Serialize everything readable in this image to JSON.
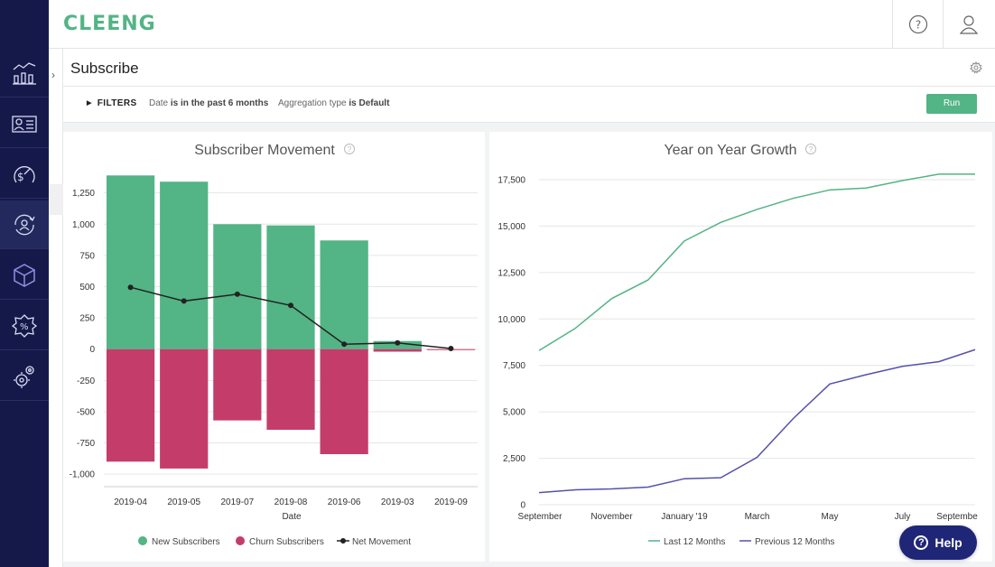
{
  "app": {
    "logo_text": "CLEENG"
  },
  "sidebar": {
    "items": [
      {
        "name": "analytics-icon"
      },
      {
        "name": "customer-card-icon"
      },
      {
        "name": "revenue-gauge-icon"
      },
      {
        "name": "subscriber-refresh-icon",
        "active": true
      },
      {
        "name": "cube-offers-icon"
      },
      {
        "name": "discount-badge-icon"
      },
      {
        "name": "settings-gears-icon"
      }
    ]
  },
  "topbar": {
    "help_icon": "question-circle-icon",
    "user_icon": "user-icon"
  },
  "page": {
    "title": "Subscribe"
  },
  "filters": {
    "toggle_label": "FILTERS",
    "date_label": "Date",
    "date_value": "is in the past 6 months",
    "aggregation_label": "Aggregation type",
    "aggregation_value": "is Default",
    "run_label": "Run"
  },
  "help": {
    "label": "Help"
  },
  "colors": {
    "green": "#53b485",
    "pink": "#c43d6a",
    "navy": "#15194a",
    "purple": "#5551ab"
  },
  "chart_data": [
    {
      "type": "bar",
      "title": "Subscriber Movement",
      "xlabel": "Date",
      "ylabel": "",
      "categories": [
        "2019-04",
        "2019-05",
        "2019-07",
        "2019-08",
        "2019-06",
        "2019-03",
        "2019-09"
      ],
      "series": [
        {
          "name": "New Subscribers",
          "type": "bar",
          "color": "#53b485",
          "values": [
            1390,
            1340,
            1000,
            990,
            870,
            65,
            0
          ]
        },
        {
          "name": "Churn Subscribers",
          "type": "bar",
          "color": "#c43d6a",
          "values": [
            -900,
            -955,
            -570,
            -645,
            -840,
            -20,
            -5
          ]
        },
        {
          "name": "Net Movement",
          "type": "line",
          "color": "#222222",
          "values": [
            495,
            385,
            440,
            350,
            40,
            50,
            5
          ]
        }
      ],
      "yticks": [
        -1000,
        -750,
        -500,
        -250,
        0,
        250,
        500,
        750,
        1000,
        1250
      ],
      "ytick_labels": [
        "-1,000",
        "-750",
        "-500",
        "-250",
        "0",
        "250",
        "500",
        "750",
        "1,000",
        "1,250"
      ],
      "ylim": [
        -1100,
        1450
      ],
      "grid": true,
      "legend": "bottom"
    },
    {
      "type": "line",
      "title": "Year on Year Growth",
      "xlabel": "",
      "ylabel": "",
      "x_points": 17,
      "xtick_positions": [
        0,
        2,
        4,
        6,
        8,
        10,
        12,
        14
      ],
      "xtick_labels": [
        "September",
        "November",
        "January '19",
        "March",
        "May",
        "July",
        "Septembe"
      ],
      "xtick_label_index": [
        0,
        2,
        4,
        6,
        8,
        10,
        12
      ],
      "series": [
        {
          "name": "Last 12 Months",
          "color": "#53b485",
          "values": [
            8300,
            9500,
            11100,
            12100,
            14200,
            15200,
            15900,
            16500,
            16950,
            17050,
            17450,
            17800,
            17800
          ]
        },
        {
          "name": "Previous 12 Months",
          "color": "#5551ab",
          "values": [
            650,
            800,
            850,
            950,
            1400,
            1450,
            2550,
            4650,
            6500,
            7000,
            7450,
            7700,
            8350
          ]
        }
      ],
      "yticks": [
        0,
        2500,
        5000,
        7500,
        10000,
        12500,
        15000,
        17500
      ],
      "ytick_labels": [
        "0",
        "2,500",
        "5,000",
        "7,500",
        "10,000",
        "12,500",
        "15,000",
        "17,500"
      ],
      "ylim": [
        0,
        17500
      ],
      "grid": true,
      "legend": "bottom"
    }
  ],
  "chart_help_icon": "question-circle-icon"
}
